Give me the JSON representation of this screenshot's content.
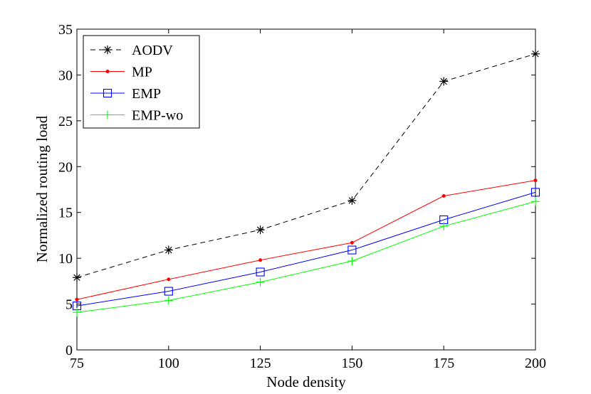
{
  "chart_data": {
    "type": "line",
    "title": "",
    "xlabel": "Node density",
    "ylabel": "Normalized routing load",
    "x": [
      75,
      100,
      125,
      150,
      175,
      200
    ],
    "xticks": [
      75,
      100,
      125,
      150,
      175,
      200
    ],
    "yticks": [
      0,
      5,
      10,
      15,
      20,
      25,
      30,
      35
    ],
    "xlim": [
      75,
      200
    ],
    "ylim": [
      0,
      35
    ],
    "grid": false,
    "legend_position": "top-left",
    "series": [
      {
        "name": "AODV",
        "values": [
          7.9,
          10.9,
          13.1,
          16.3,
          29.3,
          32.3
        ],
        "color": "#000000",
        "dash": "dashed",
        "marker": "asterisk"
      },
      {
        "name": "MP",
        "values": [
          5.5,
          7.7,
          9.8,
          11.7,
          16.8,
          18.5
        ],
        "color": "#ff0000",
        "dash": "solid",
        "marker": "dot"
      },
      {
        "name": "EMP",
        "values": [
          4.8,
          6.4,
          8.5,
          10.9,
          14.2,
          17.2
        ],
        "color": "#0000ff",
        "dash": "solid",
        "marker": "square"
      },
      {
        "name": "EMP-wo",
        "values": [
          4.1,
          5.4,
          7.4,
          9.7,
          13.5,
          16.2
        ],
        "color": "#00ff00",
        "dash": "solid",
        "marker": "plus"
      }
    ]
  }
}
